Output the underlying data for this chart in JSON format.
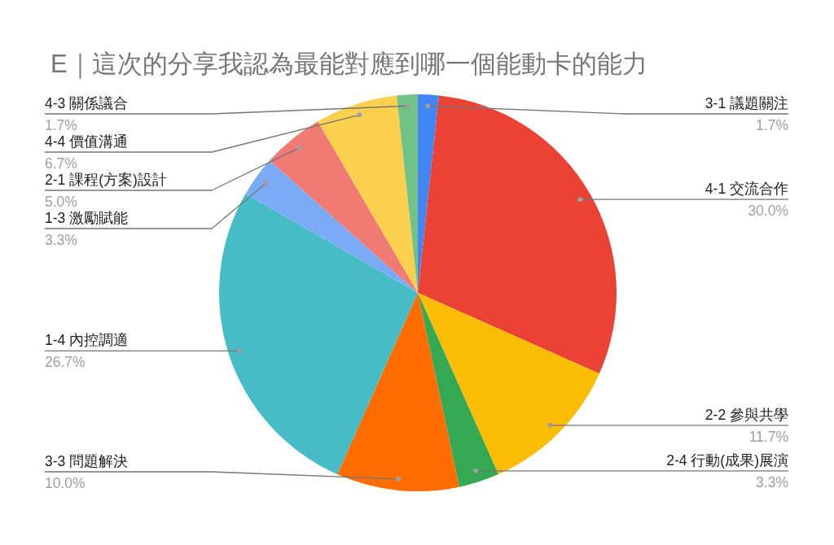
{
  "chart_data": {
    "type": "pie",
    "title": "E｜這次的分享我認為最能對應到哪一個能動卡的能力",
    "categories": [
      "3-1 議題關注",
      "4-1 交流合作",
      "2-2 參與共學",
      "2-4 行動(成果)展演",
      "3-3 問題解決",
      "1-4 內控調適",
      "1-3 激勵賦能",
      "2-1 課程(方案)設計",
      "4-4 價值溝通",
      "4-3 關係議合"
    ],
    "values": [
      1.7,
      30.0,
      11.7,
      3.3,
      10.0,
      26.7,
      3.3,
      5.0,
      6.7,
      1.7
    ],
    "colors": [
      "#4285f4",
      "#ea4335",
      "#fbbc04",
      "#34a853",
      "#ff6d01",
      "#46bdc6",
      "#7baaf7",
      "#f07b72",
      "#fcd04f",
      "#71c287"
    ],
    "value_labels": [
      "1.7%",
      "30.0%",
      "11.7%",
      "3.3%",
      "10.0%",
      "26.7%",
      "3.3%",
      "5.0%",
      "6.7%",
      "1.7%"
    ]
  }
}
